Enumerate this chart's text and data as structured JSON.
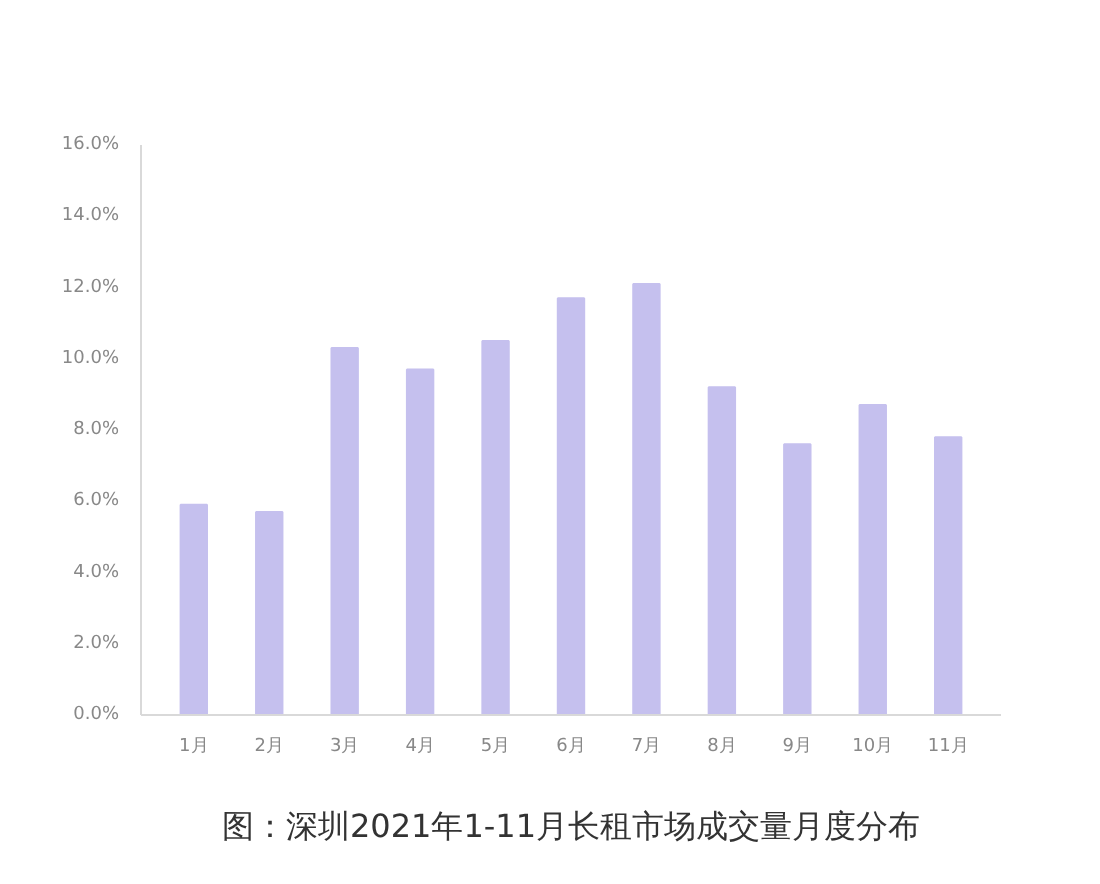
{
  "chart_data": {
    "type": "bar",
    "title": "图：深圳2021年1-11月长租市场成交量月度分布",
    "categories": [
      "1月",
      "2月",
      "3月",
      "4月",
      "5月",
      "6月",
      "7月",
      "8月",
      "9月",
      "10月",
      "11月"
    ],
    "values": [
      5.9,
      5.7,
      10.3,
      9.7,
      10.5,
      11.7,
      12.1,
      9.2,
      7.6,
      8.7,
      7.8
    ],
    "color": "#c5c0ee",
    "ylim": [
      0,
      16
    ],
    "yticks": [
      {
        "value": 0,
        "label": "0.0%"
      },
      {
        "value": 2,
        "label": "2.0%"
      },
      {
        "value": 4,
        "label": "4.0%"
      },
      {
        "value": 6,
        "label": "6.0%"
      },
      {
        "value": 8,
        "label": "8.0%"
      },
      {
        "value": 10,
        "label": "10.0%"
      },
      {
        "value": 12,
        "label": "12.0%"
      },
      {
        "value": 14,
        "label": "14.0%"
      },
      {
        "value": 16,
        "label": "16.0%"
      }
    ],
    "grid": false
  }
}
